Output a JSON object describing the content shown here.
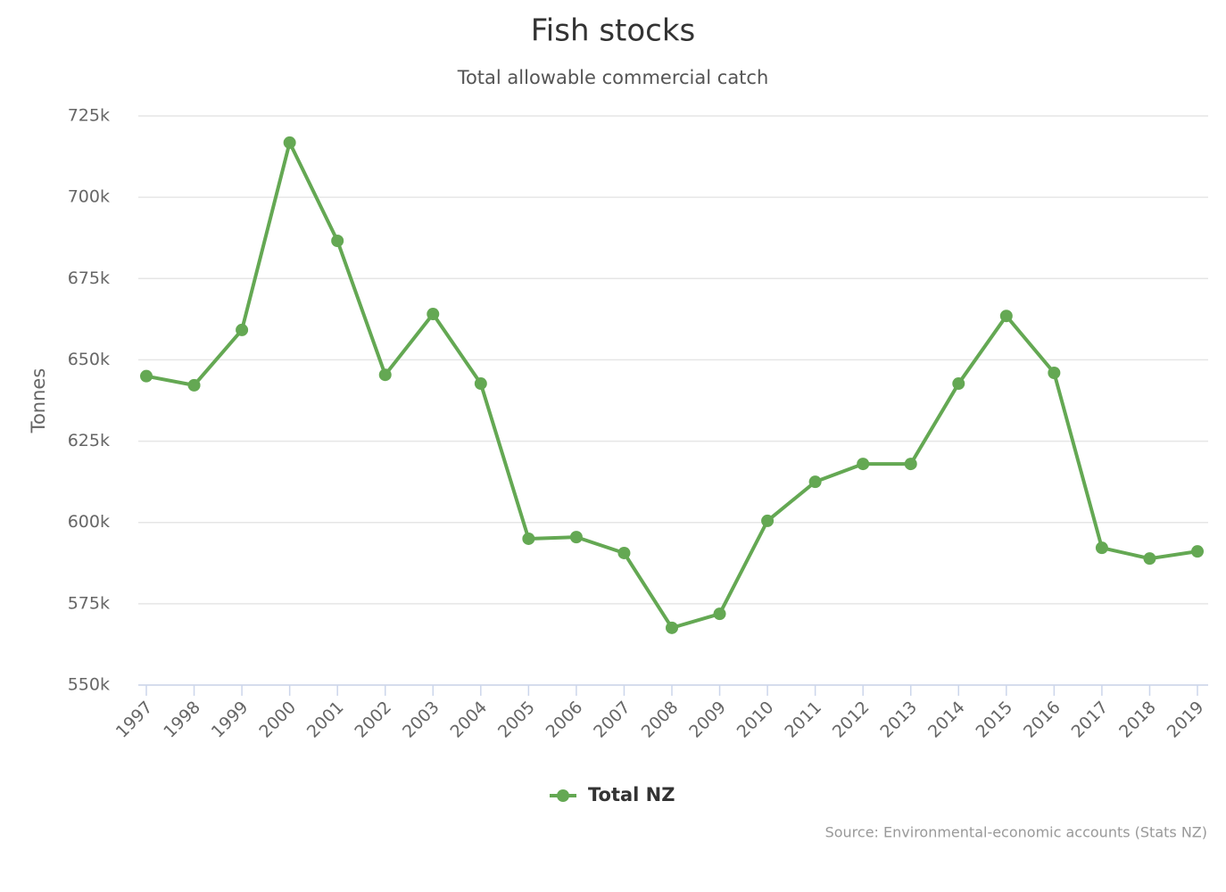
{
  "chart_data": {
    "type": "line",
    "title": "Fish stocks",
    "subtitle": "Total allowable commercial catch",
    "y_label": "Tonnes",
    "categories": [
      "1997",
      "1998",
      "1999",
      "2000",
      "2001",
      "2002",
      "2003",
      "2004",
      "2005",
      "2006",
      "2007",
      "2008",
      "2009",
      "2010",
      "2011",
      "2012",
      "2013",
      "2014",
      "2015",
      "2016",
      "2017",
      "2018",
      "2019"
    ],
    "series": [
      {
        "name": "Total NZ",
        "color": "#64a853",
        "values": [
          645000,
          642200,
          659200,
          716800,
          686600,
          645400,
          664100,
          642700,
          595000,
          595500,
          590600,
          567600,
          571900,
          600500,
          612500,
          618000,
          618000,
          642700,
          663500,
          646000,
          592200,
          588900,
          591100
        ]
      }
    ],
    "ylim": [
      550000,
      725000
    ],
    "yticks": [
      {
        "value": 550000,
        "label": "550k"
      },
      {
        "value": 575000,
        "label": "575k"
      },
      {
        "value": 600000,
        "label": "600k"
      },
      {
        "value": 625000,
        "label": "625k"
      },
      {
        "value": 650000,
        "label": "650k"
      },
      {
        "value": 675000,
        "label": "675k"
      },
      {
        "value": 700000,
        "label": "700k"
      },
      {
        "value": 725000,
        "label": "725k"
      }
    ],
    "grid": true,
    "legend": "bottom",
    "source": "Source: Environmental-economic accounts (Stats NZ)"
  }
}
